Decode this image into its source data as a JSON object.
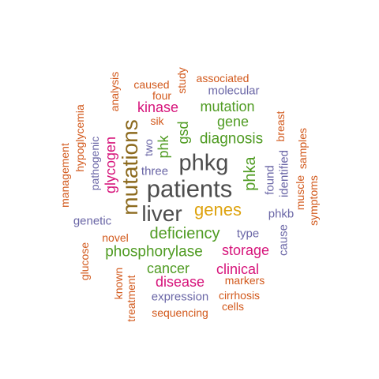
{
  "words": [
    {
      "id": "patients",
      "text": "patients",
      "color": "#4d4d4d"
    },
    {
      "id": "phkg",
      "text": "phkg",
      "color": "#4d4d4d"
    },
    {
      "id": "liver",
      "text": "liver",
      "color": "#4d4d4d"
    },
    {
      "id": "mutations",
      "text": "mutations",
      "color": "#8c6a1e"
    },
    {
      "id": "genes",
      "text": "genes",
      "color": "#dea30f"
    },
    {
      "id": "deficiency",
      "text": "deficiency",
      "color": "#4f9b22"
    },
    {
      "id": "phosphorylase",
      "text": "phosphorylase",
      "color": "#4f9b22"
    },
    {
      "id": "diagnosis",
      "text": "diagnosis",
      "color": "#4f9b22"
    },
    {
      "id": "mutation",
      "text": "mutation",
      "color": "#4f9b22"
    },
    {
      "id": "gene",
      "text": "gene",
      "color": "#4f9b22"
    },
    {
      "id": "phka",
      "text": "phka",
      "color": "#4f9b22"
    },
    {
      "id": "gsd",
      "text": "gsd",
      "color": "#4f9b22"
    },
    {
      "id": "phk",
      "text": "phk",
      "color": "#4f9b22"
    },
    {
      "id": "cancer",
      "text": "cancer",
      "color": "#4f9b22"
    },
    {
      "id": "kinase",
      "text": "kinase",
      "color": "#d6137a"
    },
    {
      "id": "glycogen",
      "text": "glycogen",
      "color": "#d6137a"
    },
    {
      "id": "storage",
      "text": "storage",
      "color": "#d6137a"
    },
    {
      "id": "clinical",
      "text": "clinical",
      "color": "#d6137a"
    },
    {
      "id": "disease",
      "text": "disease",
      "color": "#d6137a"
    },
    {
      "id": "molecular",
      "text": "molecular",
      "color": "#6a66a6"
    },
    {
      "id": "two",
      "text": "two",
      "color": "#6a66a6"
    },
    {
      "id": "three",
      "text": "three",
      "color": "#6a66a6"
    },
    {
      "id": "pathogenic",
      "text": "pathogenic",
      "color": "#6a66a6"
    },
    {
      "id": "genetic",
      "text": "genetic",
      "color": "#6a66a6"
    },
    {
      "id": "type",
      "text": "type",
      "color": "#6a66a6"
    },
    {
      "id": "phkb",
      "text": "phkb",
      "color": "#6a66a6"
    },
    {
      "id": "found",
      "text": "found",
      "color": "#6a66a6"
    },
    {
      "id": "identified",
      "text": "identified",
      "color": "#6a66a6"
    },
    {
      "id": "cause",
      "text": "cause",
      "color": "#6a66a6"
    },
    {
      "id": "expression",
      "text": "expression",
      "color": "#6a66a6"
    },
    {
      "id": "caused",
      "text": "caused",
      "color": "#d2591c"
    },
    {
      "id": "associated",
      "text": "associated",
      "color": "#d2591c"
    },
    {
      "id": "study",
      "text": "study",
      "color": "#d2591c"
    },
    {
      "id": "four",
      "text": "four",
      "color": "#d2591c"
    },
    {
      "id": "sik",
      "text": "sik",
      "color": "#d2591c"
    },
    {
      "id": "analysis",
      "text": "analysis",
      "color": "#d2591c"
    },
    {
      "id": "hypoglycemia",
      "text": "hypoglycemia",
      "color": "#d2591c"
    },
    {
      "id": "management",
      "text": "management",
      "color": "#d2591c"
    },
    {
      "id": "breast",
      "text": "breast",
      "color": "#d2591c"
    },
    {
      "id": "samples",
      "text": "samples",
      "color": "#d2591c"
    },
    {
      "id": "muscle",
      "text": "muscle",
      "color": "#d2591c"
    },
    {
      "id": "symptoms",
      "text": "symptoms",
      "color": "#d2591c"
    },
    {
      "id": "novel",
      "text": "novel",
      "color": "#d2591c"
    },
    {
      "id": "glucose",
      "text": "glucose",
      "color": "#d2591c"
    },
    {
      "id": "known",
      "text": "known",
      "color": "#d2591c"
    },
    {
      "id": "treatment",
      "text": "treatment",
      "color": "#d2591c"
    },
    {
      "id": "markers",
      "text": "markers",
      "color": "#d2591c"
    },
    {
      "id": "cirrhosis",
      "text": "cirrhosis",
      "color": "#d2591c"
    },
    {
      "id": "cells",
      "text": "cells",
      "color": "#d2591c"
    },
    {
      "id": "sequencing",
      "text": "sequencing",
      "color": "#d2591c"
    }
  ]
}
